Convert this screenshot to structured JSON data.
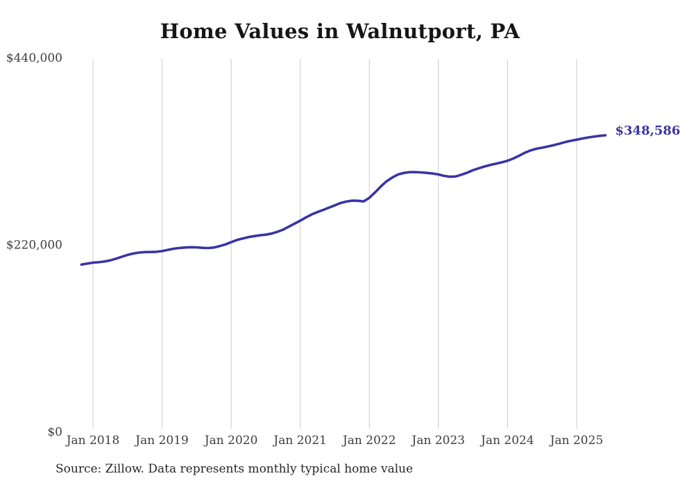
{
  "title": "Home Values in Walnutport, PA",
  "source_note": "Source: Zillow. Data represents monthly typical home value",
  "end_label": "$348,586",
  "colors": {
    "line": "#3a34a4",
    "end_label": "#3a34a4",
    "grid": "#cccccc",
    "title": "#161616",
    "axis_text": "#3d3d3d",
    "source_text": "#262626",
    "background": "#ffffff"
  },
  "y_axis": {
    "ticks": [
      {
        "label": "$440,000",
        "value": 440000
      },
      {
        "label": "$220,000",
        "value": 220000
      },
      {
        "label": "$0",
        "value": 0
      }
    ]
  },
  "x_axis": {
    "ticks": [
      {
        "label": "Jan 2018",
        "month": "2018-01"
      },
      {
        "label": "Jan 2019",
        "month": "2019-01"
      },
      {
        "label": "Jan 2020",
        "month": "2020-01"
      },
      {
        "label": "Jan 2021",
        "month": "2021-01"
      },
      {
        "label": "Jan 2022",
        "month": "2022-01"
      },
      {
        "label": "Jan 2023",
        "month": "2023-01"
      },
      {
        "label": "Jan 2024",
        "month": "2024-01"
      },
      {
        "label": "Jan 2025",
        "month": "2025-01"
      }
    ]
  },
  "chart_data": {
    "type": "line",
    "title": "Home Values in Walnutport, PA",
    "series_name": "Monthly typical home value",
    "unit": "USD",
    "ylim": [
      0,
      440000
    ],
    "grid": "vertical-only",
    "legend": "none",
    "latest_value": 348586,
    "months": [
      "2017-11",
      "2017-12",
      "2018-01",
      "2018-02",
      "2018-03",
      "2018-04",
      "2018-05",
      "2018-06",
      "2018-07",
      "2018-08",
      "2018-09",
      "2018-10",
      "2018-11",
      "2018-12",
      "2019-01",
      "2019-02",
      "2019-03",
      "2019-04",
      "2019-05",
      "2019-06",
      "2019-07",
      "2019-08",
      "2019-09",
      "2019-10",
      "2019-11",
      "2019-12",
      "2020-01",
      "2020-02",
      "2020-03",
      "2020-04",
      "2020-05",
      "2020-06",
      "2020-07",
      "2020-08",
      "2020-09",
      "2020-10",
      "2020-11",
      "2020-12",
      "2021-01",
      "2021-02",
      "2021-03",
      "2021-04",
      "2021-05",
      "2021-06",
      "2021-07",
      "2021-08",
      "2021-09",
      "2021-10",
      "2021-11",
      "2021-12",
      "2022-01",
      "2022-02",
      "2022-03",
      "2022-04",
      "2022-05",
      "2022-06",
      "2022-07",
      "2022-08",
      "2022-09",
      "2022-10",
      "2022-11",
      "2022-12",
      "2023-01",
      "2023-02",
      "2023-03",
      "2023-04",
      "2023-05",
      "2023-06",
      "2023-07",
      "2023-08",
      "2023-09",
      "2023-10",
      "2023-11",
      "2023-12",
      "2024-01",
      "2024-02",
      "2024-03",
      "2024-04",
      "2024-05",
      "2024-06",
      "2024-07",
      "2024-08",
      "2024-09",
      "2024-10",
      "2024-11",
      "2024-12",
      "2025-01",
      "2025-02",
      "2025-03",
      "2025-04",
      "2025-05",
      "2025-06"
    ],
    "values": [
      196500,
      197600,
      198800,
      199300,
      200100,
      201500,
      203400,
      205600,
      207800,
      209500,
      210600,
      211200,
      211300,
      211500,
      212300,
      213800,
      215100,
      216000,
      216600,
      216900,
      216700,
      216200,
      215900,
      216600,
      218200,
      220200,
      222800,
      225400,
      227200,
      228800,
      230000,
      230900,
      231700,
      232900,
      234900,
      237500,
      241100,
      244600,
      248200,
      252000,
      255500,
      258300,
      260800,
      263500,
      266200,
      268900,
      270600,
      271700,
      271600,
      270800,
      275000,
      281500,
      288500,
      294500,
      299000,
      302500,
      304300,
      305200,
      305300,
      304900,
      304300,
      303600,
      302500,
      300800,
      299800,
      300200,
      302200,
      304600,
      307500,
      309700,
      311800,
      313600,
      315200,
      316700,
      318600,
      321200,
      324500,
      328000,
      330800,
      332700,
      334000,
      335400,
      337000,
      338700,
      340600,
      342100,
      343400,
      344800,
      346000,
      347000,
      347900,
      348586
    ]
  }
}
